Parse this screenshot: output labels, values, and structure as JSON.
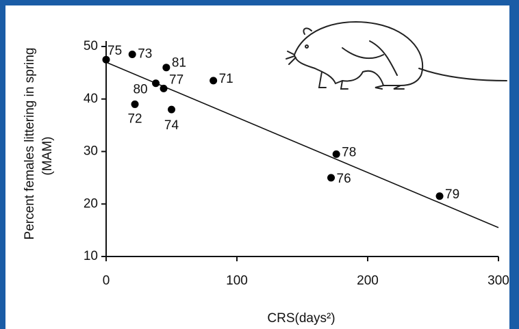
{
  "chart_data": {
    "type": "scatter",
    "y_label": "Percent females littering in spring",
    "y_label_2": "(MAM)",
    "x_label": "CRS(days²)",
    "xlim": [
      0,
      300
    ],
    "xticks": [
      0,
      100,
      200,
      300
    ],
    "ylim": [
      10,
      50
    ],
    "yticks": [
      10,
      20,
      30,
      40,
      50
    ],
    "color": "#000000",
    "x": [
      0,
      20,
      46,
      38,
      44,
      82,
      22,
      50,
      176,
      172,
      255
    ],
    "values": [
      47.5,
      48.5,
      46,
      43,
      42,
      43.5,
      39,
      38,
      29.5,
      25,
      21.5
    ],
    "point_labels": [
      "75",
      "73",
      "81",
      "80",
      "77",
      "71",
      "72",
      "74",
      "78",
      "76",
      "79"
    ],
    "trend_line": {
      "x": [
        0,
        300
      ],
      "y": [
        47,
        15.5
      ]
    }
  }
}
